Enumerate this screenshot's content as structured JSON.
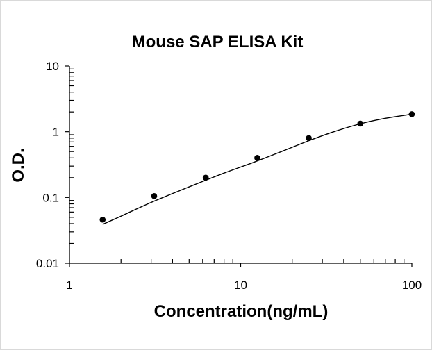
{
  "chart_data": {
    "type": "scatter",
    "title": "Mouse SAP ELISA Kit",
    "xlabel": "Concentration(ng/mL)",
    "ylabel": "O.D.",
    "x_scale": "log",
    "y_scale": "log",
    "xlim": [
      1,
      100
    ],
    "ylim": [
      0.01,
      10
    ],
    "x_tick_labels": [
      "1",
      "10",
      "100"
    ],
    "y_tick_labels": [
      "10",
      "1",
      "0.1",
      "0.01"
    ],
    "grid": false,
    "legend": "none",
    "colors": {
      "points": "#000000",
      "curve": "#000000",
      "axis": "#000000"
    },
    "series": [
      {
        "x": [
          1.5625,
          3.125,
          6.25,
          12.5,
          25,
          50,
          100
        ],
        "y": [
          0.046,
          0.105,
          0.2,
          0.4,
          0.8,
          1.33,
          1.85
        ]
      }
    ],
    "fit_curve": {
      "x": [
        1.5625,
        2,
        3,
        5,
        8,
        12,
        18,
        25,
        35,
        50,
        70,
        100
      ],
      "y": [
        0.039,
        0.052,
        0.084,
        0.145,
        0.235,
        0.345,
        0.52,
        0.73,
        1.0,
        1.32,
        1.6,
        1.85
      ]
    }
  }
}
